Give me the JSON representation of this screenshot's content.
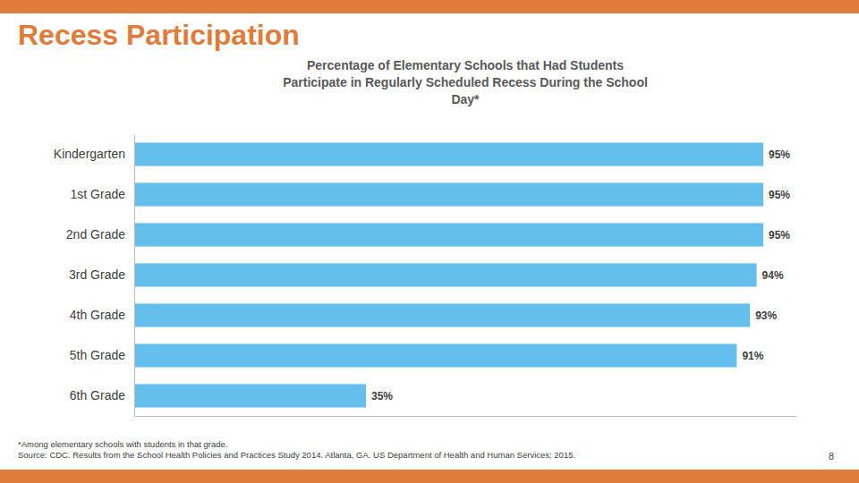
{
  "chart_data": {
    "type": "bar",
    "orientation": "horizontal",
    "title": "Recess Participation",
    "subtitle": "Percentage of Elementary Schools that Had Students\nParticipate in Regularly Scheduled Recess During the School\nDay*",
    "categories": [
      "Kindergarten",
      "1st Grade",
      "2nd Grade",
      "3rd Grade",
      "4th Grade",
      "5th Grade",
      "6th Grade"
    ],
    "values": [
      95,
      95,
      95,
      94,
      93,
      91,
      35
    ],
    "value_labels": [
      "95%",
      "95%",
      "95%",
      "94%",
      "93%",
      "91%",
      "35%"
    ],
    "color": "#64BFED",
    "xlim": [
      0,
      100
    ],
    "grid": false,
    "data_labels": true,
    "tick_labels": "y",
    "annotations": [
      "*Among elementary schools with students in that grade.",
      "Source: CDC. Results from the School Health Policies and Practices Study 2014. Atlanta, GA. US Department of Health and Human Services; 2015.",
      "8"
    ]
  }
}
